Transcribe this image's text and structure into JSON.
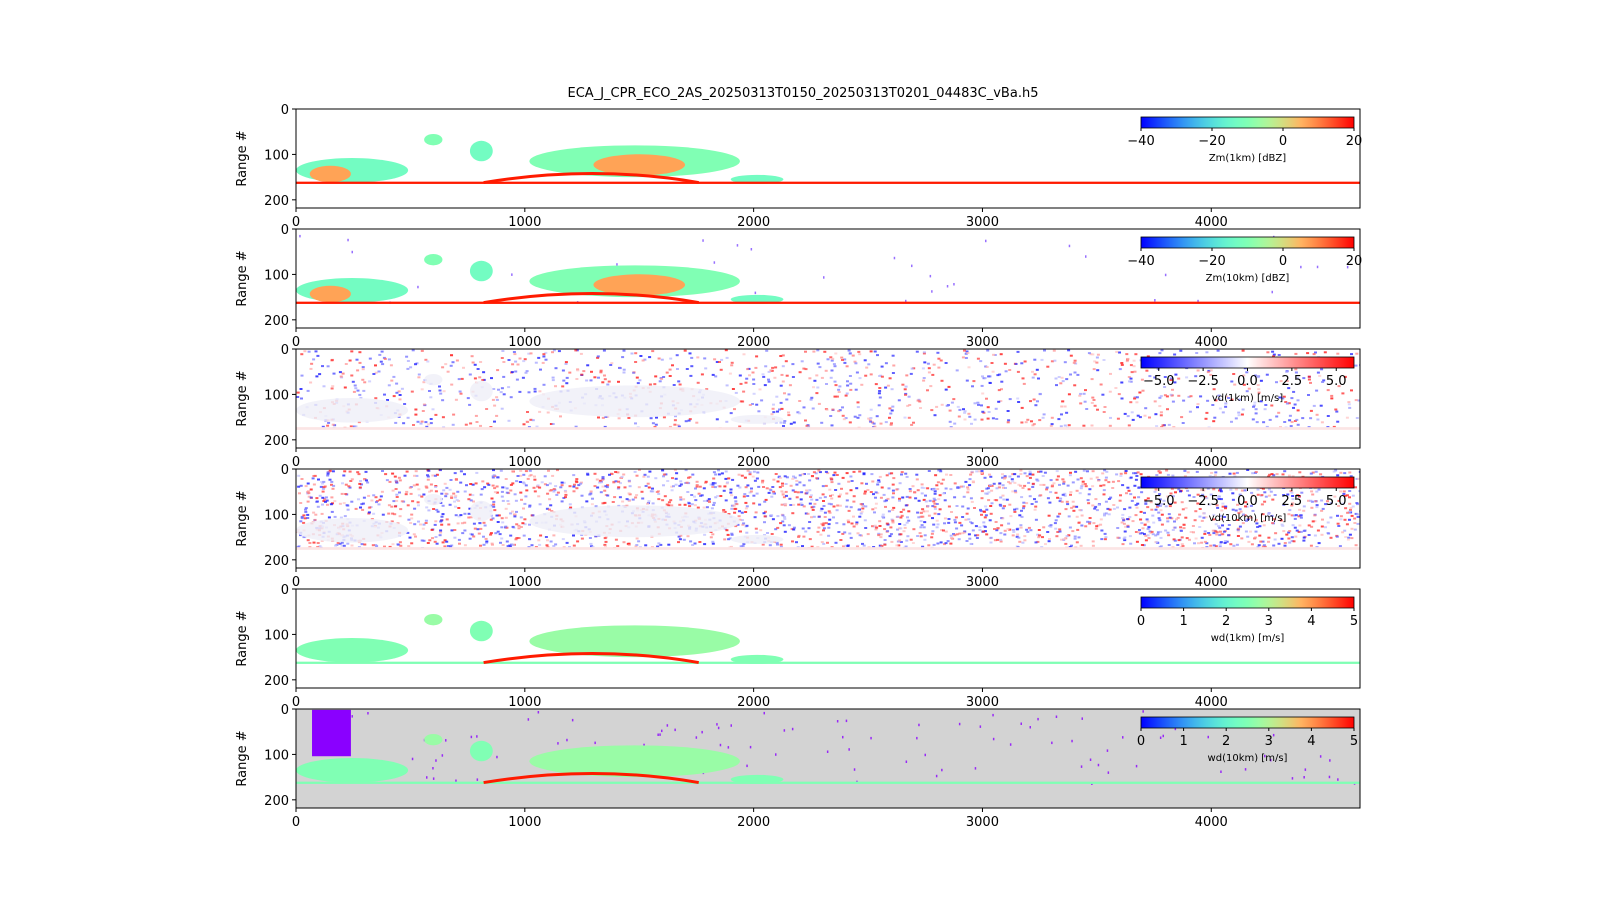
{
  "figure": {
    "title": "ECA_J_CPR_ECO_2AS_20250313T0150_20250313T0201_04483C_vBa.h5"
  },
  "chart_data": [
    {
      "type": "heatmap",
      "panel": "Zm(1km)",
      "ylabel": "Range #",
      "xlim": [
        0,
        4650
      ],
      "ylim": [
        0,
        218
      ],
      "y_inverted": true,
      "xticks": [
        0,
        1000,
        2000,
        3000,
        4000
      ],
      "yticks": [
        0,
        100,
        200
      ],
      "colorbar": {
        "label": "Zm(1km) [dBZ]",
        "cmap": "rainbow",
        "range": [
          -40,
          20
        ],
        "ticks": [
          "−40",
          "−20",
          "0",
          "20"
        ]
      },
      "features": {
        "surface_range": 162,
        "cloud_field": "sparse",
        "noise_level": 0.0,
        "background": "#ffffff"
      }
    },
    {
      "type": "heatmap",
      "panel": "Zm(10km)",
      "ylabel": "Range #",
      "xlim": [
        0,
        4650
      ],
      "ylim": [
        0,
        218
      ],
      "y_inverted": true,
      "xticks": [
        0,
        1000,
        2000,
        3000,
        4000
      ],
      "yticks": [
        0,
        100,
        200
      ],
      "colorbar": {
        "label": "Zm(10km) [dBZ]",
        "cmap": "rainbow",
        "range": [
          -40,
          20
        ],
        "ticks": [
          "−40",
          "−20",
          "0",
          "20"
        ]
      },
      "features": {
        "surface_range": 162,
        "cloud_field": "sparse",
        "noise_level": 0.05,
        "background": "#ffffff"
      }
    },
    {
      "type": "heatmap",
      "panel": "vd(1km)",
      "ylabel": "Range #",
      "xlim": [
        0,
        4650
      ],
      "ylim": [
        0,
        218
      ],
      "y_inverted": true,
      "xticks": [
        0,
        1000,
        2000,
        3000,
        4000
      ],
      "yticks": [
        0,
        100,
        200
      ],
      "colorbar": {
        "label": "vd(1km) [m/s]",
        "cmap": "bwr",
        "range": [
          -6,
          6
        ],
        "ticks": [
          "−5.0",
          "−2.5",
          "0.0",
          "2.5",
          "5.0"
        ]
      },
      "features": {
        "surface_range": 172,
        "cloud_field": "doppler",
        "noise_level": 0.35,
        "background": "#ffffff"
      }
    },
    {
      "type": "heatmap",
      "panel": "vd(10km)",
      "ylabel": "Range #",
      "xlim": [
        0,
        4650
      ],
      "ylim": [
        0,
        218
      ],
      "y_inverted": true,
      "xticks": [
        0,
        1000,
        2000,
        3000,
        4000
      ],
      "yticks": [
        0,
        100,
        200
      ],
      "colorbar": {
        "label": "vd(10km) [m/s]",
        "cmap": "bwr",
        "range": [
          -6,
          6
        ],
        "ticks": [
          "−5.0",
          "−2.5",
          "0.0",
          "2.5",
          "5.0"
        ]
      },
      "features": {
        "surface_range": 172,
        "cloud_field": "doppler",
        "noise_level": 0.9,
        "background": "#ffffff"
      }
    },
    {
      "type": "heatmap",
      "panel": "wd(1km)",
      "ylabel": "Range #",
      "xlim": [
        0,
        4650
      ],
      "ylim": [
        0,
        218
      ],
      "y_inverted": true,
      "xticks": [
        0,
        1000,
        2000,
        3000,
        4000
      ],
      "yticks": [
        0,
        100,
        200
      ],
      "colorbar": {
        "label": "wd(1km) [m/s]",
        "cmap": "rainbow",
        "range": [
          0,
          5
        ],
        "ticks": [
          "0",
          "1",
          "2",
          "3",
          "4",
          "5"
        ]
      },
      "features": {
        "surface_range": 162,
        "cloud_field": "width",
        "noise_level": 0.0,
        "background": "#ffffff"
      }
    },
    {
      "type": "heatmap",
      "panel": "wd(10km)",
      "ylabel": "Range #",
      "xlim": [
        0,
        4650
      ],
      "ylim": [
        0,
        218
      ],
      "y_inverted": true,
      "xticks": [
        0,
        1000,
        2000,
        3000,
        4000
      ],
      "yticks": [
        0,
        100,
        200
      ],
      "colorbar": {
        "label": "wd(10km) [m/s]",
        "cmap": "rainbow",
        "range": [
          0,
          5
        ],
        "ticks": [
          "0",
          "1",
          "2",
          "3",
          "4",
          "5"
        ]
      },
      "features": {
        "surface_range": 162,
        "cloud_field": "width",
        "noise_level": 0.12,
        "background": "#d3d3d3"
      }
    }
  ]
}
